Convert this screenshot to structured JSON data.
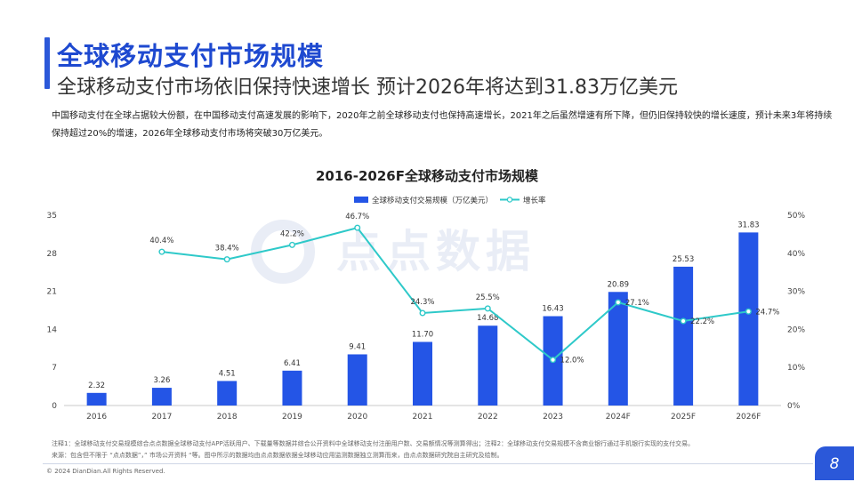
{
  "header": {
    "title": "全球移动支付市场规模",
    "subtitle": "全球移动支付市场依旧保持快速增长 预计2026年将达到31.83万亿美元"
  },
  "description": "中国移动支付在全球占据较大份额，在中国移动支付高速发展的影响下，2020年之前全球移动支付也保持高速增长，2021年之后虽然增速有所下降，但仍旧保持较快的增长速度，预计未来3年将持续保持超过20%的增速，2026年全球移动支付市场将突破30万亿美元。",
  "watermark": "点点数据",
  "footnotes": {
    "note": "注释1：全球移动支付交易规模综合点点数据全球移动支付APP活跃用户、下载量等数据并综合公开资料中全球移动支付注册用户数、交易额情况等测算得出；注释2：全球移动支付交易规模不含商业银行通过手机银行实现的支付交易。",
    "source": "来源：包含但不限于 “点点数据”，” 市场公开资料 “等。图中所示的数据均由点点数据依据全球移动应用监测数据独立测算而来，由点点数据研究院自主研究及绘制。",
    "copyright": "© 2024 DianDian.All Rights Reserved."
  },
  "page_number": "8",
  "colors": {
    "bar": "#2455e6",
    "line": "#2ec9c9",
    "title_blue": "#1e49d0"
  },
  "chart_data": {
    "type": "bar",
    "title": "2016-2026F全球移动支付市场规模",
    "categories": [
      "2016",
      "2017",
      "2018",
      "2019",
      "2020",
      "2021",
      "2022",
      "2023",
      "2024F",
      "2025F",
      "2026F"
    ],
    "series": [
      {
        "name": "全球移动支付交易规模（万亿美元）",
        "type": "bar",
        "axis": "left",
        "values": [
          2.32,
          3.26,
          4.51,
          6.41,
          9.41,
          11.7,
          14.68,
          16.43,
          20.89,
          25.53,
          31.83
        ],
        "labels": [
          "2.32",
          "3.26",
          "4.51",
          "6.41",
          "9.41",
          "11.70",
          "14.68",
          "16.43",
          "20.89",
          "25.53",
          "31.83"
        ]
      },
      {
        "name": "增长率",
        "type": "line",
        "axis": "right",
        "values": [
          null,
          40.4,
          38.4,
          42.2,
          46.7,
          24.3,
          25.5,
          12.0,
          27.1,
          22.2,
          24.7
        ],
        "labels": [
          null,
          "40.4%",
          "38.4%",
          "42.2%",
          "46.7%",
          "24.3%",
          "25.5%",
          "12.0%",
          "27.1%",
          "22.2%",
          "24.7%"
        ]
      }
    ],
    "y_left": {
      "min": 0,
      "max": 35,
      "ticks": [
        "0",
        "7",
        "14",
        "21",
        "28",
        "35"
      ]
    },
    "y_right": {
      "min": 0,
      "max": 50,
      "ticks": [
        "0%",
        "10%",
        "20%",
        "30%",
        "40%",
        "50%"
      ]
    },
    "legend_position": "top-center",
    "grid": false
  }
}
